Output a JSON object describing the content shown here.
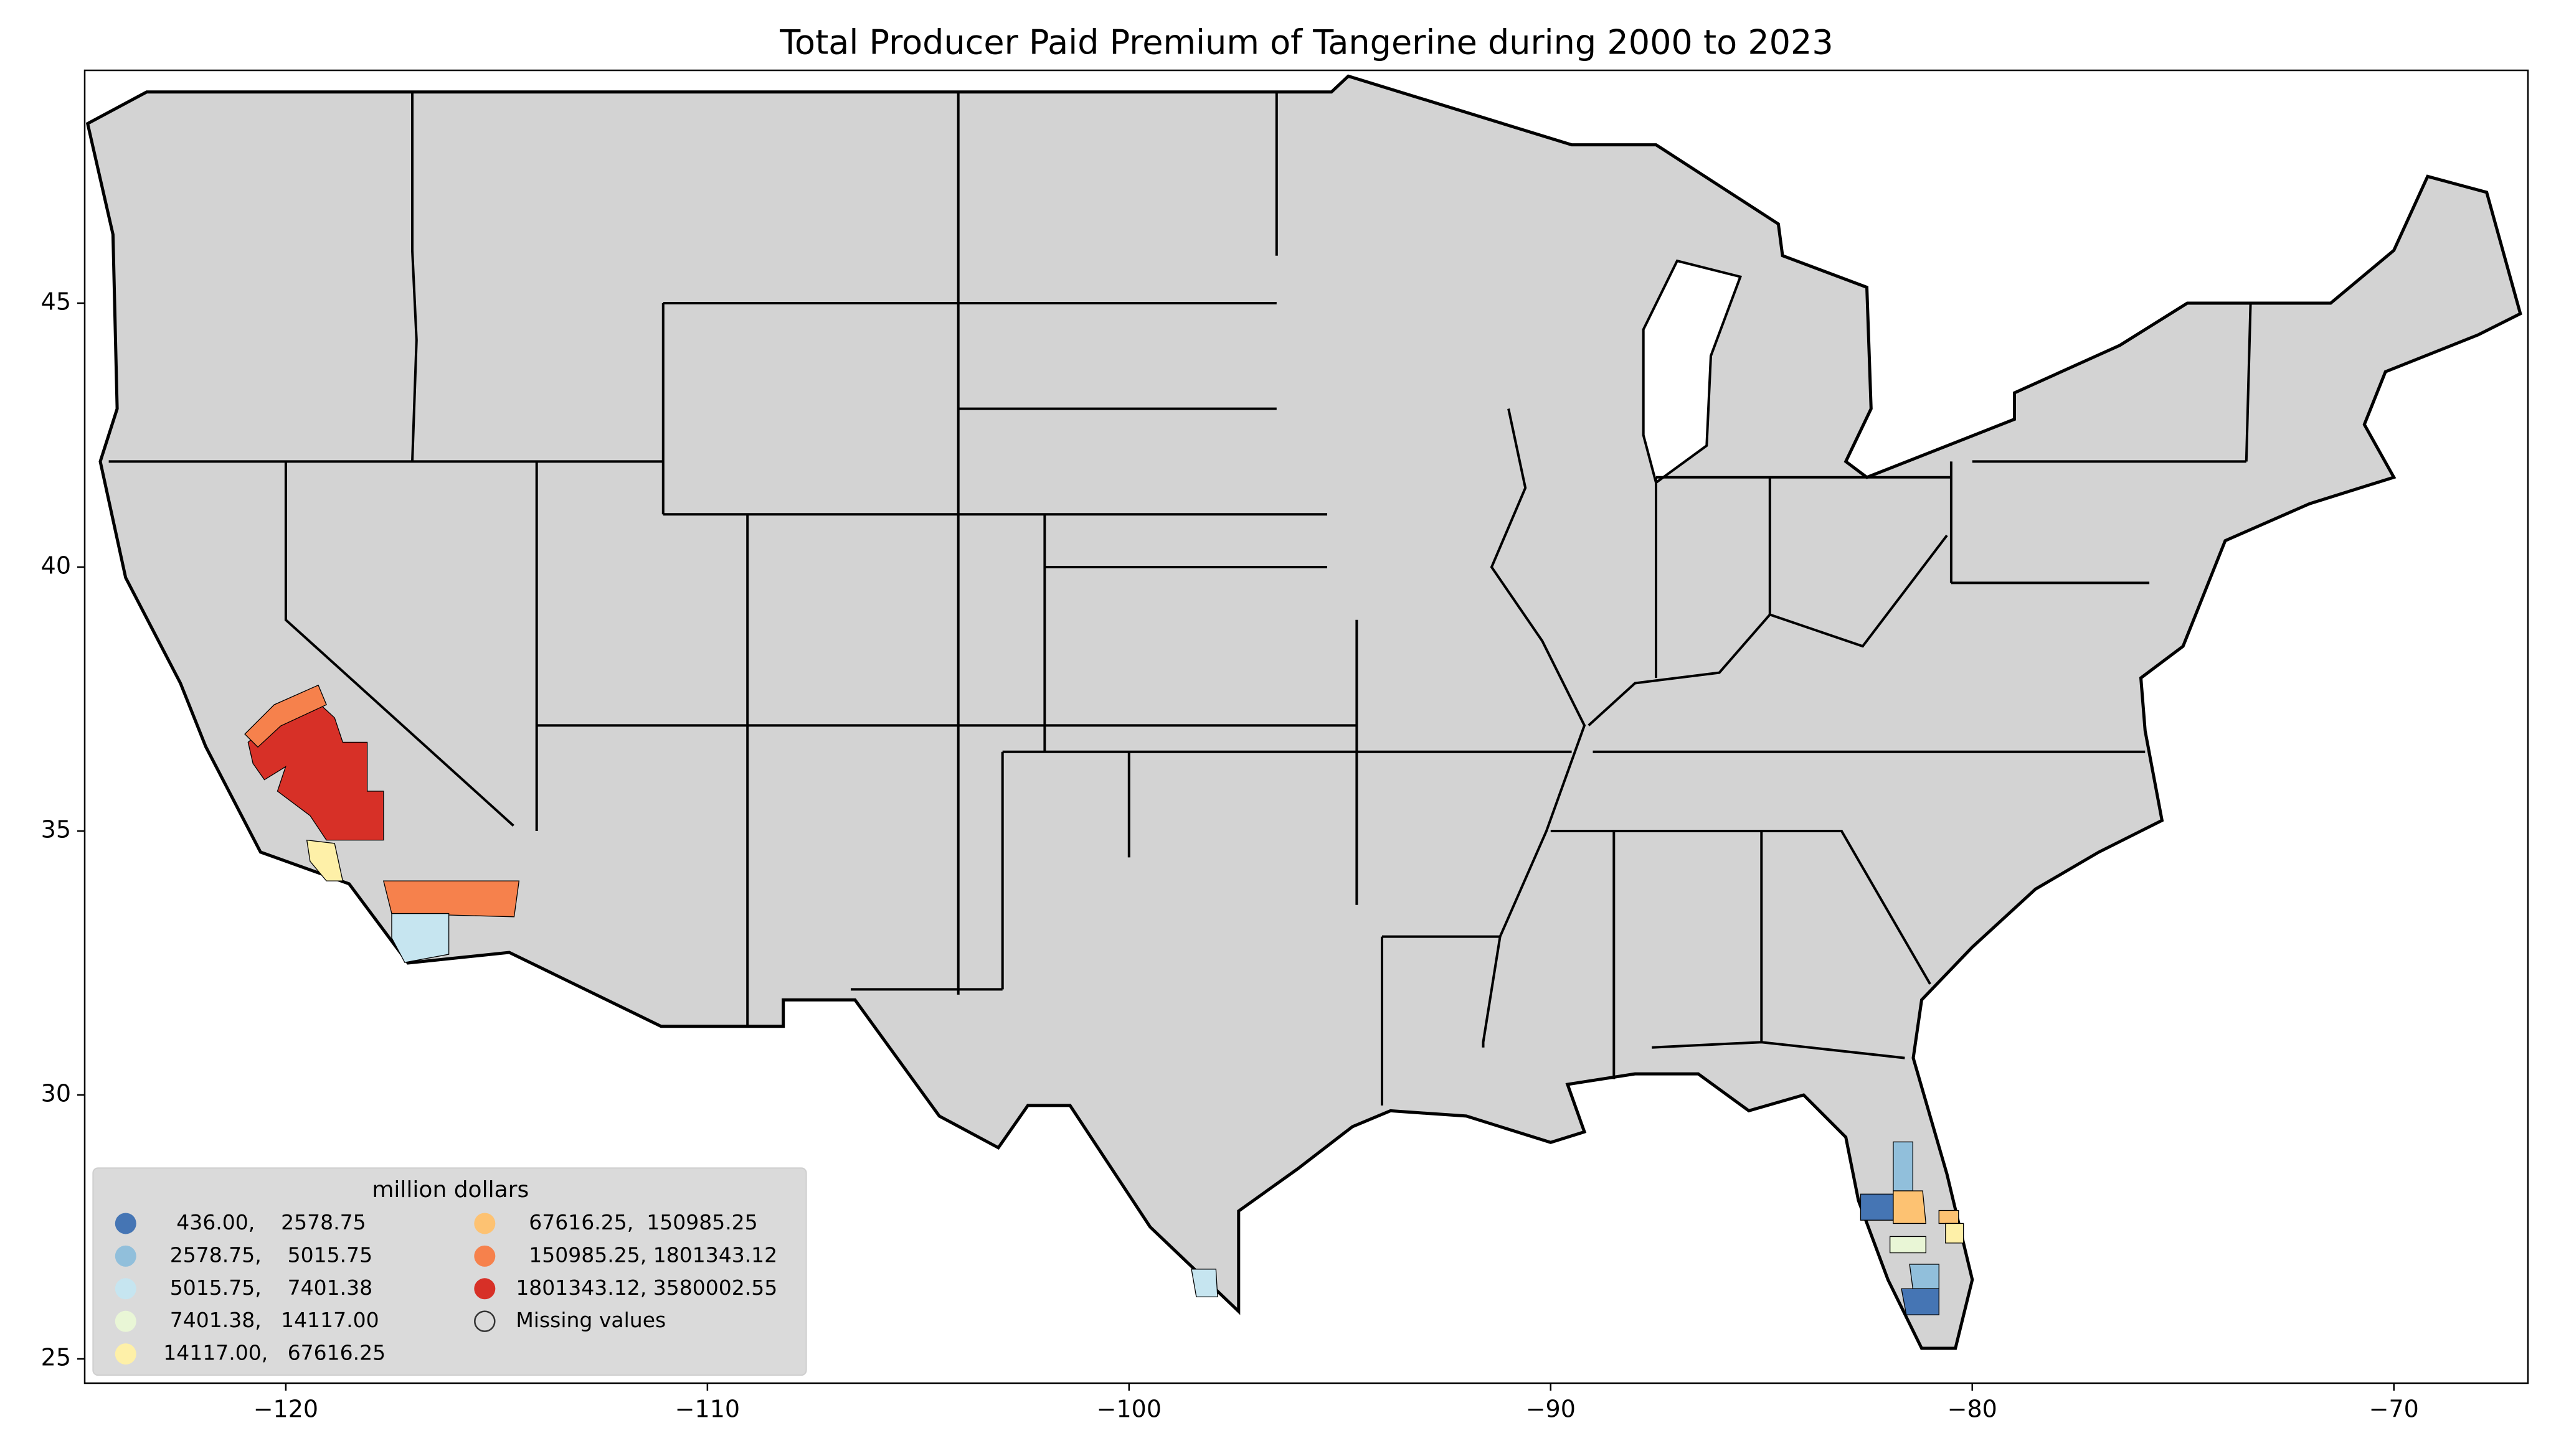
{
  "map": {
    "title": "Total Producer Paid Premium of Tangerine during 2000 to 2023",
    "xlim": [
      -124.77,
      -66.82
    ],
    "ylim": [
      24.54,
      49.41
    ],
    "xticks": [
      {
        "value": -120,
        "label": "−120"
      },
      {
        "value": -110,
        "label": "−110"
      },
      {
        "value": -100,
        "label": "−100"
      },
      {
        "value": -90,
        "label": "−90"
      },
      {
        "value": -80,
        "label": "−80"
      },
      {
        "value": -70,
        "label": "−70"
      }
    ],
    "yticks": [
      25,
      30,
      35,
      40,
      45
    ],
    "land_color": "#d3d3d3",
    "legend": {
      "title": "million dollars",
      "items": [
        {
          "label": "   436.00,    2578.75",
          "color": "#4575b4"
        },
        {
          "label": "  2578.75,    5015.75",
          "color": "#91bfdb"
        },
        {
          "label": "  5015.75,    7401.38",
          "color": "#c6e5f0"
        },
        {
          "label": "  7401.38,   14117.00",
          "color": "#e9f6d6"
        },
        {
          "label": " 14117.00,   67616.25",
          "color": "#fef0a8"
        },
        {
          "label": "  67616.25,  150985.25",
          "color": "#fdc272"
        },
        {
          "label": "  150985.25, 1801343.12",
          "color": "#f6814c"
        },
        {
          "label": "1801343.12, 3580002.55",
          "color": "#d73027"
        },
        {
          "label": "Missing values"
        }
      ]
    }
  }
}
